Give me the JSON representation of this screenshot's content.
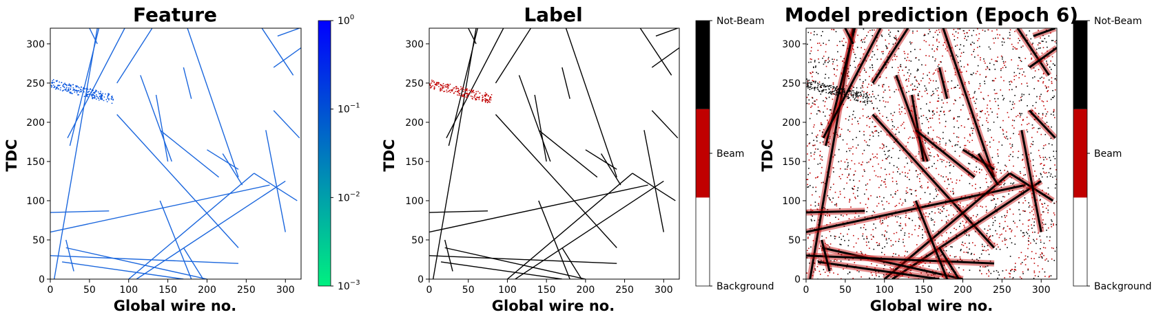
{
  "chart_data": [
    {
      "type": "heatmap",
      "title": "Feature",
      "xlabel": "Global wire no.",
      "ylabel": "TDC",
      "xlim": [
        0,
        320
      ],
      "ylim": [
        0,
        320
      ],
      "xticks": [
        "0",
        "50",
        "100",
        "150",
        "200",
        "250",
        "300"
      ],
      "yticks": [
        "0",
        "50",
        "100",
        "150",
        "200",
        "250",
        "300"
      ],
      "colorbar": {
        "scale": "log",
        "range": [
          0.001,
          1
        ],
        "colors": [
          "#00f080",
          "#0000ff"
        ],
        "ticks": [
          {
            "base": "10",
            "exp": "0"
          },
          {
            "base": "10",
            "exp": "−1"
          },
          {
            "base": "10",
            "exp": "−2"
          },
          {
            "base": "10",
            "exp": "−3"
          }
        ]
      },
      "tracks": [
        {
          "x": [
            5,
            60
          ],
          "y": [
            0,
            320
          ]
        },
        {
          "x": [
            25,
            62
          ],
          "y": [
            170,
            320
          ]
        },
        {
          "x": [
            22,
            95
          ],
          "y": [
            180,
            320
          ]
        },
        {
          "x": [
            85,
            130
          ],
          "y": [
            250,
            320
          ]
        },
        {
          "x": [
            115,
            155
          ],
          "y": [
            260,
            150
          ]
        },
        {
          "x": [
            135,
            150
          ],
          "y": [
            235,
            150
          ]
        },
        {
          "x": [
            85,
            240
          ],
          "y": [
            210,
            40
          ]
        },
        {
          "x": [
            175,
            240
          ],
          "y": [
            320,
            130
          ]
        },
        {
          "x": [
            140,
            215
          ],
          "y": [
            190,
            130
          ]
        },
        {
          "x": [
            200,
            240
          ],
          "y": [
            165,
            140
          ]
        },
        {
          "x": [
            0,
            280
          ],
          "y": [
            60,
            120
          ]
        },
        {
          "x": [
            100,
            260
          ],
          "y": [
            0,
            135
          ]
        },
        {
          "x": [
            110,
            300
          ],
          "y": [
            0,
            125
          ]
        },
        {
          "x": [
            260,
            315
          ],
          "y": [
            135,
            100
          ]
        },
        {
          "x": [
            20,
            200
          ],
          "y": [
            40,
            0
          ]
        },
        {
          "x": [
            0,
            240
          ],
          "y": [
            30,
            20
          ]
        },
        {
          "x": [
            15,
            170
          ],
          "y": [
            22,
            0
          ]
        },
        {
          "x": [
            170,
            195
          ],
          "y": [
            40,
            0
          ]
        },
        {
          "x": [
            140,
            180
          ],
          "y": [
            100,
            0
          ]
        },
        {
          "x": [
            0,
            75
          ],
          "y": [
            85,
            87
          ]
        },
        {
          "x": [
            20,
            30
          ],
          "y": [
            50,
            10
          ]
        },
        {
          "x": [
            170,
            180
          ],
          "y": [
            270,
            230
          ]
        },
        {
          "x": [
            270,
            310
          ],
          "y": [
            320,
            260
          ]
        },
        {
          "x": [
            285,
            318
          ],
          "y": [
            215,
            180
          ]
        },
        {
          "x": [
            285,
            320
          ],
          "y": [
            270,
            295
          ]
        },
        {
          "x": [
            275,
            300
          ],
          "y": [
            190,
            60
          ]
        },
        {
          "x": [
            220,
            245
          ],
          "y": [
            160,
            120
          ]
        },
        {
          "x": [
            290,
            318
          ],
          "y": [
            310,
            320
          ]
        },
        {
          "x": [
            50,
            60
          ],
          "y": [
            320,
            300
          ]
        }
      ],
      "blob": {
        "x": [
          0,
          80
        ],
        "y": [
          230,
          250
        ]
      }
    },
    {
      "type": "heatmap",
      "title": "Label",
      "xlabel": "Global wire no.",
      "ylabel": "TDC",
      "xlim": [
        0,
        320
      ],
      "ylim": [
        0,
        320
      ],
      "xticks": [
        "0",
        "50",
        "100",
        "150",
        "200",
        "250",
        "300"
      ],
      "yticks": [
        "0",
        "50",
        "100",
        "150",
        "200",
        "250",
        "300"
      ],
      "colorbar": {
        "scale": "categorical",
        "categories": [
          "Background",
          "Beam",
          "Not-Beam"
        ],
        "colors": [
          "#ffffff",
          "#c00000",
          "#000000"
        ]
      }
    },
    {
      "type": "heatmap",
      "title": "Model prediction (Epoch 6)",
      "xlabel": "Global wire no.",
      "ylabel": "TDC",
      "xlim": [
        0,
        320
      ],
      "ylim": [
        0,
        320
      ],
      "xticks": [
        "0",
        "50",
        "100",
        "150",
        "200",
        "250",
        "300"
      ],
      "yticks": [
        "0",
        "50",
        "100",
        "150",
        "200",
        "250",
        "300"
      ],
      "colorbar": {
        "scale": "categorical",
        "categories": [
          "Background",
          "Beam",
          "Not-Beam"
        ],
        "colors": [
          "#ffffff",
          "#c00000",
          "#000000"
        ]
      }
    }
  ]
}
